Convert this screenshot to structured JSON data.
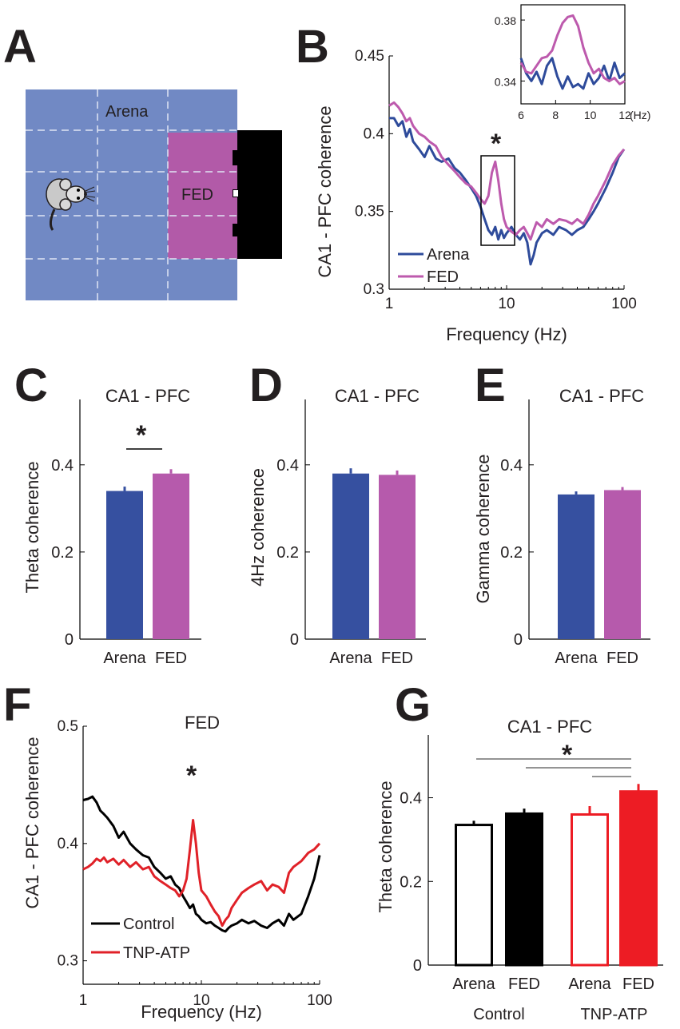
{
  "figure": {
    "panel_letters": [
      "A",
      "B",
      "C",
      "D",
      "E",
      "F",
      "G"
    ],
    "arena_diagram": {
      "arena_label": "Arena",
      "fed_label": "FED",
      "colors": {
        "arena": "#7189c4",
        "fed": "#b25aa8",
        "device": "#000000",
        "grid": "#dfe5f4"
      }
    }
  },
  "chart_data": [
    {
      "id": "B",
      "type": "line",
      "xscale": "log",
      "xlim": [
        1,
        100
      ],
      "ylim": [
        0.3,
        0.45
      ],
      "xticks": [
        "1",
        "10",
        "100"
      ],
      "yticks": [
        "0.3",
        "0.35",
        "0.4",
        "0.45"
      ],
      "xlabel": "Frequency (Hz)",
      "ylabel": "CA1 - PFC coherence",
      "legend": [
        "Arena",
        "FED"
      ],
      "legend_position": "bottom-left",
      "annotation": "*",
      "highlight_range_hz": [
        6,
        12
      ],
      "series": [
        {
          "name": "Arena",
          "color": "#2e4b9b",
          "x": [
            1,
            1.1,
            1.2,
            1.3,
            1.4,
            1.5,
            1.6,
            1.8,
            2,
            2.2,
            2.5,
            2.8,
            3.2,
            3.6,
            4,
            4.5,
            5,
            5.5,
            6,
            6.5,
            7,
            7.5,
            8,
            8.5,
            9,
            9.5,
            10,
            11,
            12,
            13,
            14,
            15,
            16,
            17,
            18,
            20,
            22,
            25,
            28,
            32,
            36,
            40,
            45,
            50,
            55,
            60,
            70,
            80,
            90,
            100
          ],
          "y": [
            0.41,
            0.41,
            0.405,
            0.408,
            0.398,
            0.403,
            0.395,
            0.39,
            0.385,
            0.392,
            0.384,
            0.382,
            0.384,
            0.378,
            0.375,
            0.37,
            0.365,
            0.36,
            0.353,
            0.345,
            0.338,
            0.335,
            0.34,
            0.332,
            0.338,
            0.333,
            0.336,
            0.34,
            0.335,
            0.332,
            0.336,
            0.33,
            0.316,
            0.322,
            0.33,
            0.336,
            0.338,
            0.335,
            0.34,
            0.338,
            0.335,
            0.338,
            0.34,
            0.345,
            0.35,
            0.355,
            0.365,
            0.375,
            0.385,
            0.39
          ]
        },
        {
          "name": "FED",
          "color": "#bd5aad",
          "x": [
            1,
            1.1,
            1.2,
            1.3,
            1.4,
            1.5,
            1.6,
            1.8,
            2,
            2.2,
            2.5,
            2.8,
            3.2,
            3.6,
            4,
            4.5,
            5,
            5.5,
            6,
            6.5,
            7,
            7.5,
            8,
            8.5,
            9,
            9.5,
            10,
            11,
            12,
            13,
            14,
            15,
            16,
            17,
            18,
            20,
            22,
            25,
            28,
            32,
            36,
            40,
            45,
            50,
            55,
            60,
            70,
            80,
            90,
            100
          ],
          "y": [
            0.418,
            0.42,
            0.417,
            0.413,
            0.408,
            0.41,
            0.405,
            0.4,
            0.398,
            0.395,
            0.392,
            0.385,
            0.38,
            0.376,
            0.372,
            0.368,
            0.366,
            0.362,
            0.358,
            0.355,
            0.36,
            0.375,
            0.382,
            0.37,
            0.355,
            0.345,
            0.34,
            0.337,
            0.335,
            0.338,
            0.34,
            0.336,
            0.332,
            0.338,
            0.343,
            0.34,
            0.345,
            0.342,
            0.345,
            0.344,
            0.342,
            0.345,
            0.342,
            0.348,
            0.355,
            0.36,
            0.37,
            0.38,
            0.386,
            0.39
          ]
        }
      ]
    },
    {
      "id": "B-inset",
      "type": "line",
      "xlim": [
        6,
        12
      ],
      "ylim": [
        0.325,
        0.39
      ],
      "xticks": [
        "6",
        "8",
        "10",
        "12"
      ],
      "yticks": [
        "0.34",
        "0.38"
      ],
      "xunit": "(Hz)",
      "series": [
        {
          "name": "Arena",
          "color": "#2e4b9b",
          "x": [
            6,
            6.3,
            6.6,
            6.9,
            7.2,
            7.5,
            7.8,
            8.1,
            8.4,
            8.7,
            9,
            9.3,
            9.6,
            9.9,
            10.2,
            10.5,
            10.8,
            11.1,
            11.4,
            11.7,
            12
          ],
          "y": [
            0.355,
            0.345,
            0.34,
            0.346,
            0.338,
            0.35,
            0.355,
            0.343,
            0.335,
            0.343,
            0.336,
            0.338,
            0.335,
            0.345,
            0.338,
            0.342,
            0.35,
            0.34,
            0.352,
            0.342,
            0.345
          ]
        },
        {
          "name": "FED",
          "color": "#bd5aad",
          "x": [
            6,
            6.3,
            6.6,
            6.9,
            7.2,
            7.5,
            7.8,
            8.1,
            8.4,
            8.7,
            9,
            9.3,
            9.6,
            9.9,
            10.2,
            10.5,
            10.8,
            11.1,
            11.4,
            11.7,
            12
          ],
          "y": [
            0.352,
            0.346,
            0.345,
            0.35,
            0.355,
            0.356,
            0.36,
            0.37,
            0.378,
            0.382,
            0.383,
            0.376,
            0.362,
            0.352,
            0.345,
            0.348,
            0.342,
            0.34,
            0.342,
            0.338,
            0.34
          ]
        }
      ]
    },
    {
      "id": "C",
      "type": "bar",
      "title": "CA1 - PFC",
      "ylabel": "Theta coherence",
      "ylim": [
        0,
        0.55
      ],
      "yticks": [
        "0",
        "0.2",
        "0.4"
      ],
      "categories": [
        "Arena",
        "FED"
      ],
      "values": [
        0.34,
        0.38
      ],
      "errors": [
        0.01,
        0.01
      ],
      "colors": [
        "#3650a0",
        "#b65aac"
      ],
      "significance": "*"
    },
    {
      "id": "D",
      "type": "bar",
      "title": "CA1 - PFC",
      "ylabel": "4Hz coherence",
      "ylim": [
        0,
        0.55
      ],
      "yticks": [
        "0",
        "0.2",
        "0.4"
      ],
      "categories": [
        "Arena",
        "FED"
      ],
      "values": [
        0.38,
        0.377
      ],
      "errors": [
        0.012,
        0.01
      ],
      "colors": [
        "#3650a0",
        "#b65aac"
      ]
    },
    {
      "id": "E",
      "type": "bar",
      "title": "CA1 - PFC",
      "ylabel": "Gamma coherence",
      "ylim": [
        0,
        0.55
      ],
      "yticks": [
        "0",
        "0.2",
        "0.4"
      ],
      "categories": [
        "Arena",
        "FED"
      ],
      "values": [
        0.332,
        0.342
      ],
      "errors": [
        0.007,
        0.007
      ],
      "colors": [
        "#3650a0",
        "#b65aac"
      ]
    },
    {
      "id": "F",
      "type": "line",
      "title": "FED",
      "xscale": "log",
      "xlim": [
        1,
        100
      ],
      "ylim": [
        0.28,
        0.5
      ],
      "xticks": [
        "1",
        "10",
        "100"
      ],
      "yticks": [
        "0.3",
        "0.4",
        "0.5"
      ],
      "xlabel": "Frequency (Hz)",
      "ylabel": "CA1 - PFC coherence",
      "legend": [
        "Control",
        "TNP-ATP"
      ],
      "legend_position": "bottom-left",
      "annotation": "*",
      "series": [
        {
          "name": "Control",
          "color": "#000000",
          "x": [
            1,
            1.1,
            1.2,
            1.3,
            1.4,
            1.5,
            1.6,
            1.8,
            2,
            2.2,
            2.5,
            2.8,
            3.2,
            3.6,
            4,
            4.5,
            5,
            5.5,
            6,
            6.5,
            7,
            7.5,
            8,
            8.5,
            9,
            9.5,
            10,
            11,
            12,
            13,
            14,
            15,
            16,
            17,
            18,
            20,
            22,
            25,
            28,
            32,
            36,
            40,
            45,
            50,
            55,
            60,
            70,
            80,
            90,
            100
          ],
          "y": [
            0.437,
            0.438,
            0.44,
            0.435,
            0.428,
            0.425,
            0.422,
            0.415,
            0.405,
            0.41,
            0.4,
            0.395,
            0.39,
            0.388,
            0.38,
            0.375,
            0.37,
            0.372,
            0.365,
            0.362,
            0.355,
            0.35,
            0.345,
            0.348,
            0.34,
            0.338,
            0.335,
            0.332,
            0.333,
            0.33,
            0.328,
            0.326,
            0.325,
            0.328,
            0.33,
            0.332,
            0.335,
            0.332,
            0.334,
            0.33,
            0.328,
            0.332,
            0.335,
            0.33,
            0.34,
            0.335,
            0.34,
            0.355,
            0.37,
            0.39
          ]
        },
        {
          "name": "TNP-ATP",
          "color": "#e02128",
          "x": [
            1,
            1.1,
            1.2,
            1.3,
            1.4,
            1.5,
            1.6,
            1.8,
            2,
            2.2,
            2.5,
            2.8,
            3.2,
            3.6,
            4,
            4.5,
            5,
            5.5,
            6,
            6.5,
            7,
            7.5,
            8,
            8.5,
            9,
            9.5,
            10,
            11,
            12,
            13,
            14,
            15,
            16,
            17,
            18,
            20,
            22,
            25,
            28,
            32,
            36,
            40,
            45,
            50,
            55,
            60,
            70,
            80,
            90,
            100
          ],
          "y": [
            0.378,
            0.38,
            0.383,
            0.387,
            0.385,
            0.388,
            0.384,
            0.387,
            0.382,
            0.386,
            0.38,
            0.384,
            0.378,
            0.38,
            0.372,
            0.368,
            0.365,
            0.362,
            0.36,
            0.355,
            0.36,
            0.37,
            0.395,
            0.42,
            0.4,
            0.375,
            0.36,
            0.355,
            0.348,
            0.342,
            0.338,
            0.33,
            0.335,
            0.338,
            0.345,
            0.352,
            0.358,
            0.362,
            0.365,
            0.368,
            0.36,
            0.365,
            0.363,
            0.358,
            0.375,
            0.38,
            0.385,
            0.392,
            0.395,
            0.4
          ]
        }
      ]
    },
    {
      "id": "G",
      "type": "bar",
      "title": "CA1 - PFC",
      "ylabel": "Theta coherence",
      "ylim": [
        0,
        0.55
      ],
      "yticks": [
        "0",
        "0.2",
        "0.4"
      ],
      "categories": [
        "Arena",
        "FED",
        "Arena",
        "FED"
      ],
      "groups": [
        "Control",
        "TNP-ATP"
      ],
      "values": [
        0.335,
        0.362,
        0.36,
        0.415
      ],
      "errors": [
        0.01,
        0.012,
        0.02,
        0.018
      ],
      "fills": [
        "#ffffff",
        "#000000",
        "#ffffff",
        "#ed1c24"
      ],
      "strokes": [
        "#000000",
        "#000000",
        "#ed1c24",
        "#ed1c24"
      ],
      "significance": "*"
    }
  ]
}
